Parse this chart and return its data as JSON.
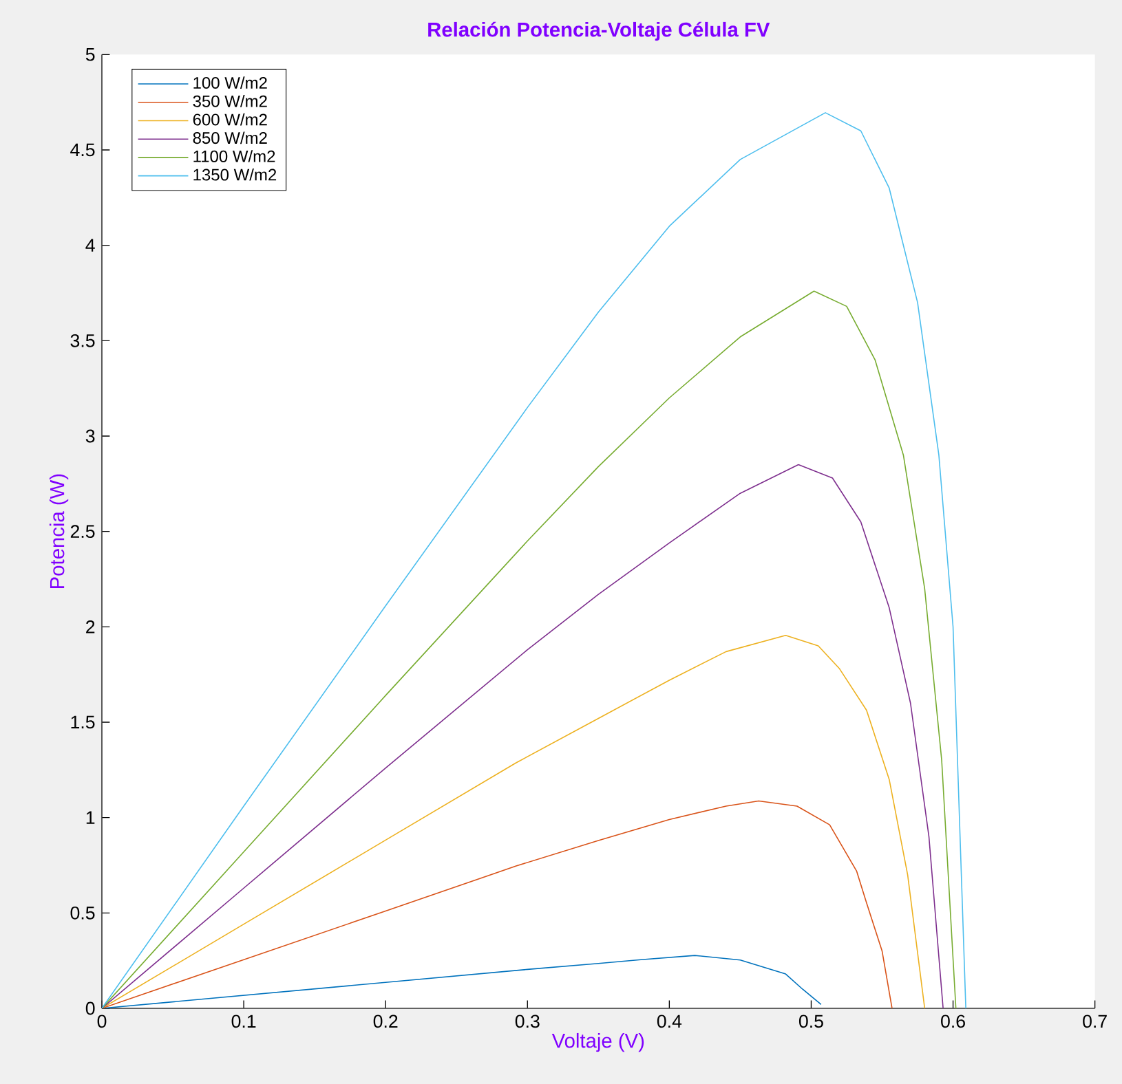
{
  "chart_data": {
    "type": "line",
    "title": "Relación Potencia-Voltaje Célula FV",
    "xlabel": "Voltaje (V)",
    "ylabel": "Potencia (W)",
    "xlim": [
      0,
      0.7
    ],
    "ylim": [
      0,
      5
    ],
    "xticks": [
      0,
      0.1,
      0.2,
      0.3,
      0.4,
      0.5,
      0.6,
      0.7
    ],
    "yticks": [
      0,
      0.5,
      1,
      1.5,
      2,
      2.5,
      3,
      3.5,
      4,
      4.5,
      5
    ],
    "grid": false,
    "legend": "top left",
    "series": [
      {
        "name": "100 W/m2",
        "color": "#0072bd",
        "x": [
          0,
          0.1,
          0.2,
          0.3,
          0.35,
          0.38,
          0.418,
          0.45,
          0.482,
          0.494,
          0.507
        ],
        "values": [
          0,
          0.068,
          0.136,
          0.204,
          0.235,
          0.255,
          0.277,
          0.253,
          0.18,
          0.1,
          0.02
        ]
      },
      {
        "name": "350 W/m2",
        "color": "#d95319",
        "x": [
          0,
          0.1,
          0.2,
          0.292,
          0.35,
          0.4,
          0.44,
          0.463,
          0.49,
          0.513,
          0.532,
          0.539,
          0.55,
          0.557
        ],
        "values": [
          0,
          0.255,
          0.51,
          0.746,
          0.88,
          0.99,
          1.06,
          1.087,
          1.06,
          0.962,
          0.72,
          0.553,
          0.3,
          0
        ]
      },
      {
        "name": "600 W/m2",
        "color": "#edb120",
        "x": [
          0,
          0.1,
          0.2,
          0.292,
          0.35,
          0.4,
          0.44,
          0.482,
          0.505,
          0.52,
          0.539,
          0.555,
          0.568,
          0.58
        ],
        "values": [
          0,
          0.441,
          0.882,
          1.287,
          1.52,
          1.72,
          1.87,
          1.955,
          1.9,
          1.78,
          1.563,
          1.2,
          0.7,
          0
        ]
      },
      {
        "name": "850 W/m2",
        "color": "#7e2f8e",
        "x": [
          0,
          0.1,
          0.2,
          0.3,
          0.35,
          0.4,
          0.45,
          0.491,
          0.515,
          0.535,
          0.555,
          0.57,
          0.583,
          0.593
        ],
        "values": [
          0,
          0.63,
          1.26,
          1.88,
          2.17,
          2.44,
          2.7,
          2.85,
          2.78,
          2.55,
          2.1,
          1.6,
          0.9,
          0
        ]
      },
      {
        "name": "1100 W/m2",
        "color": "#77ac30",
        "x": [
          0,
          0.1,
          0.2,
          0.3,
          0.35,
          0.4,
          0.45,
          0.502,
          0.525,
          0.545,
          0.565,
          0.58,
          0.592,
          0.602
        ],
        "values": [
          0,
          0.82,
          1.64,
          2.45,
          2.84,
          3.2,
          3.52,
          3.76,
          3.68,
          3.4,
          2.9,
          2.2,
          1.3,
          0
        ]
      },
      {
        "name": "1350 W/m2",
        "color": "#4dbeee",
        "x": [
          0,
          0.1,
          0.2,
          0.3,
          0.35,
          0.4,
          0.45,
          0.51,
          0.535,
          0.555,
          0.575,
          0.59,
          0.6,
          0.609
        ],
        "values": [
          0,
          1.06,
          2.11,
          3.15,
          3.65,
          4.1,
          4.45,
          4.695,
          4.6,
          4.3,
          3.7,
          2.9,
          2.0,
          0
        ]
      }
    ]
  }
}
